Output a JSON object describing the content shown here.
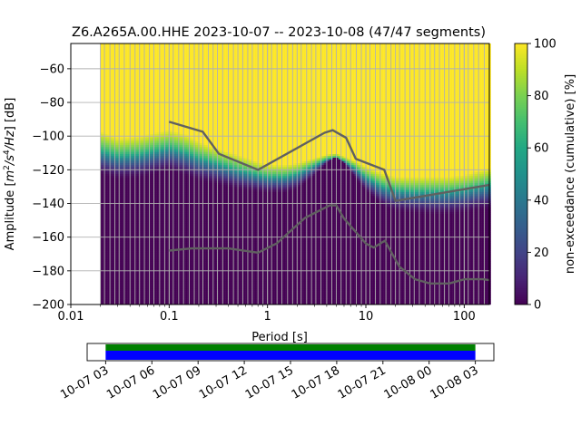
{
  "title": "Z6.A265A.00.HHE   2023-10-07 -- 2023-10-08  (47/47 segments)",
  "colors": {
    "viridis": [
      "#440154",
      "#482475",
      "#414487",
      "#355f8d",
      "#2a788e",
      "#21918c",
      "#22a884",
      "#44bf70",
      "#7ad151",
      "#bddf26",
      "#fde725"
    ],
    "grid": "#b0b0b0",
    "model_line": "#606060",
    "coverage_green": "#008000",
    "coverage_blue": "#0000ff"
  },
  "chart_data": {
    "type": "heatmap",
    "subtype": "probabilistic power spectral density",
    "xlabel": "Period [s]",
    "ylabel": "Amplitude [m²/s⁴/Hz] [dB]",
    "ylabel_parts": {
      "pre": "Amplitude [",
      "m": "m",
      "m_sup": "2",
      "mid": "/s",
      "s_sup": "4",
      "hz": "/Hz",
      "post": "] [dB]"
    },
    "xscale": "log",
    "xlim": [
      0.01,
      180
    ],
    "ylim": [
      -200,
      -45
    ],
    "x_ticks": [
      0.01,
      0.1,
      1,
      10,
      100
    ],
    "x_tick_labels": [
      "0.01",
      "0.1",
      "1",
      "10",
      "100"
    ],
    "y_ticks": [
      -200,
      -180,
      -160,
      -140,
      -120,
      -100,
      -80,
      -60
    ],
    "y_tick_labels": [
      "−200",
      "−180",
      "−160",
      "−140",
      "−120",
      "−100",
      "−80",
      "−60"
    ],
    "data_period_min": 0.02,
    "grid_periods": [
      0.02,
      0.022,
      0.025,
      0.028,
      0.031,
      0.035,
      0.04,
      0.045,
      0.05,
      0.056,
      0.063,
      0.07,
      0.08,
      0.09,
      0.1,
      0.11,
      0.125,
      0.14,
      0.16,
      0.18,
      0.2,
      0.22,
      0.25,
      0.28,
      0.31,
      0.35,
      0.4,
      0.45,
      0.5,
      0.56,
      0.63,
      0.7,
      0.8,
      0.9,
      1.0,
      1.1,
      1.25,
      1.4,
      1.6,
      1.8,
      2.0,
      2.2,
      2.5,
      2.8,
      3.1,
      3.5,
      4.0,
      4.5,
      5.0,
      5.6,
      6.3,
      7.0,
      8.0,
      9.0,
      10,
      11,
      12.5,
      14,
      16,
      18,
      20,
      22,
      25,
      28,
      31,
      35,
      40,
      45,
      50,
      56,
      63,
      70,
      80,
      90,
      100,
      110,
      125,
      140,
      160
    ],
    "psd_bands": {
      "periods": [
        0.02,
        0.03,
        0.05,
        0.07,
        0.1,
        0.15,
        0.2,
        0.3,
        0.5,
        0.7,
        1.0,
        1.5,
        2.0,
        3.0,
        4.0,
        5.0,
        6.0,
        8.0,
        10,
        15,
        20,
        30,
        50,
        70,
        100,
        150,
        180
      ],
      "p0": [
        -123,
        -126,
        -125,
        -123,
        -121,
        -124,
        -127,
        -129,
        -132,
        -133,
        -134,
        -134,
        -132,
        -124,
        -116,
        -112,
        -116,
        -126,
        -133,
        -142,
        -145,
        -146,
        -147,
        -147,
        -146,
        -144,
        -144
      ],
      "p50": [
        -110,
        -113,
        -112,
        -110,
        -108,
        -111,
        -114,
        -117,
        -121,
        -123,
        -125,
        -125,
        -123,
        -118,
        -114,
        -113,
        -115,
        -120,
        -125,
        -131,
        -133,
        -134,
        -134,
        -134,
        -133,
        -131,
        -130
      ],
      "p100": [
        -97,
        -101,
        -100,
        -98,
        -96,
        -99,
        -103,
        -107,
        -111,
        -114,
        -117,
        -117,
        -116,
        -113,
        -111,
        -110,
        -112,
        -115,
        -118,
        -122,
        -124,
        -124,
        -124,
        -124,
        -123,
        -120,
        -119
      ]
    },
    "noise_models": [
      {
        "name": "NHNM",
        "periods": [
          0.1,
          0.22,
          0.32,
          0.8,
          3.8,
          4.6,
          6.3,
          7.9,
          15.4,
          20,
          180
        ],
        "db": [
          -91.5,
          -97.4,
          -110.5,
          -120,
          -98,
          -96.5,
          -101,
          -113.5,
          -120,
          -138.5,
          -129
        ]
      },
      {
        "name": "NLNM",
        "periods": [
          0.1,
          0.17,
          0.4,
          0.8,
          1.24,
          2.4,
          4.3,
          5.0,
          6.0,
          10,
          12,
          15.6,
          21.9,
          31.6,
          45,
          70,
          101,
          154,
          180
        ],
        "db": [
          -168,
          -166.7,
          -166.7,
          -169.2,
          -163.7,
          -148.6,
          -141.1,
          -141.1,
          -149,
          -163.8,
          -166.2,
          -162.1,
          -177.5,
          -185,
          -187.5,
          -187.5,
          -185,
          -185,
          -185.5
        ]
      }
    ],
    "colorbar": {
      "label": "non-exceedance (cumulative) [%]",
      "range": [
        0,
        100
      ],
      "ticks": [
        0,
        20,
        40,
        60,
        80,
        100
      ],
      "tick_labels": [
        "0",
        "20",
        "40",
        "60",
        "80",
        "100"
      ]
    },
    "coverage": {
      "ticks": [
        "10-07 03",
        "10-07 06",
        "10-07 09",
        "10-07 12",
        "10-07 15",
        "10-07 18",
        "10-07 21",
        "10-08 00",
        "10-08 03"
      ],
      "tick_hours": [
        0,
        3,
        6,
        9,
        12,
        15,
        18,
        21,
        24
      ],
      "axis_hours": [
        -1.2,
        25.2
      ],
      "data_hours": [
        0,
        24
      ]
    }
  }
}
